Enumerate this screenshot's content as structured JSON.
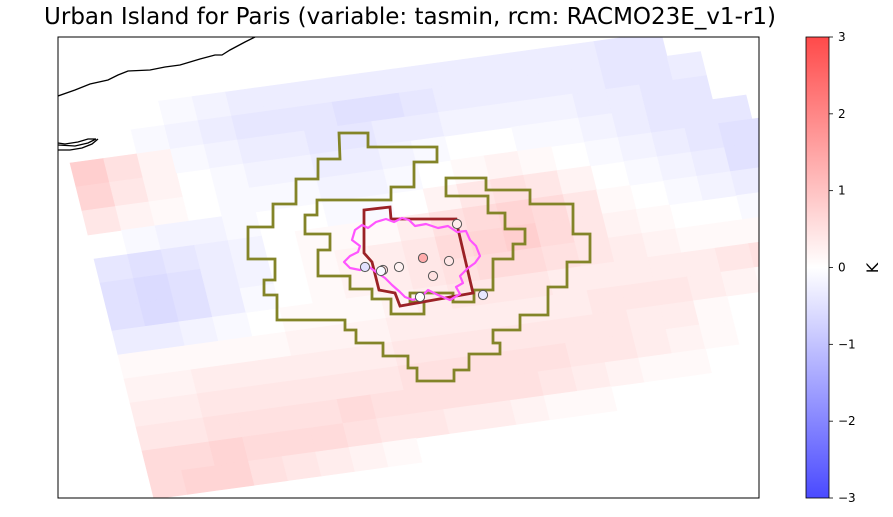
{
  "chart_data": {
    "type": "heatmap",
    "title": "Urban Island for Paris (variable: tasmin, rcm: RACMO23E_v1-r1)",
    "colorbar": {
      "label": "K",
      "range": [
        -3,
        3
      ],
      "ticks": [
        -3,
        -2,
        -1,
        0,
        1,
        2,
        3
      ],
      "tick_labels": [
        "−3",
        "−2",
        "−1",
        "0",
        "1",
        "2",
        "3"
      ],
      "colormap": [
        "#4a4aff",
        "#ffffff",
        "#ff4a4a"
      ]
    },
    "overlay_colors": {
      "urban_boundary": "#ff55ff",
      "urban_grid": "#9b2226",
      "rural_ring": "#838428",
      "coastline": "#000000"
    },
    "grid_anomaly_K": [
      [
        0.0,
        0.0,
        0.0,
        -0.1,
        -0.2,
        -0.3,
        -0.3,
        -0.3,
        -0.3,
        -0.3,
        -0.3,
        -0.3,
        -0.3,
        -0.3,
        -0.3,
        -0.3,
        -0.4,
        -0.4,
        0.0,
        0.0,
        0.0,
        0.0
      ],
      [
        0.0,
        0.0,
        -0.1,
        -0.2,
        -0.3,
        -0.4,
        -0.4,
        -0.4,
        -0.5,
        -0.5,
        -0.4,
        -0.3,
        -0.3,
        -0.3,
        -0.3,
        -0.3,
        -0.4,
        -0.4,
        -0.3,
        0.0,
        0.0,
        0.0
      ],
      [
        0.8,
        0.5,
        0.2,
        -0.1,
        -0.2,
        -0.3,
        -0.3,
        -0.4,
        -0.4,
        -0.3,
        -0.3,
        -0.2,
        -0.2,
        -0.2,
        -0.2,
        -0.3,
        -0.3,
        -0.4,
        -0.4,
        0.0,
        0.0,
        0.0
      ],
      [
        0.7,
        0.4,
        0.2,
        0.0,
        -0.1,
        -0.2,
        -0.2,
        -0.3,
        -0.3,
        -0.2,
        -0.1,
        0.0,
        0.0,
        -0.1,
        -0.1,
        -0.2,
        -0.3,
        -0.4,
        -0.4,
        -0.4,
        0.0,
        0.0
      ],
      [
        0.4,
        0.2,
        0.1,
        0.0,
        -0.1,
        -0.1,
        -0.1,
        -0.2,
        -0.2,
        -0.1,
        0.0,
        0.1,
        0.2,
        0.1,
        0.0,
        -0.1,
        -0.2,
        -0.3,
        -0.4,
        -0.5,
        -0.5,
        0.0
      ],
      [
        0.0,
        -0.1,
        -0.2,
        -0.2,
        -0.1,
        0.0,
        0.0,
        -0.1,
        -0.1,
        0.0,
        0.2,
        0.4,
        0.5,
        0.4,
        0.2,
        0.0,
        -0.1,
        -0.2,
        -0.3,
        -0.5,
        -0.6,
        -0.6
      ],
      [
        -0.4,
        -0.5,
        -0.4,
        -0.3,
        -0.2,
        0.0,
        0.1,
        0.1,
        0.1,
        0.3,
        0.5,
        0.6,
        0.7,
        0.6,
        0.4,
        0.1,
        0.0,
        -0.1,
        -0.2,
        -0.3,
        -0.4,
        -0.5
      ],
      [
        -0.5,
        -0.6,
        -0.5,
        -0.3,
        -0.2,
        0.0,
        0.1,
        0.2,
        0.3,
        0.4,
        0.6,
        0.7,
        0.8,
        0.6,
        0.4,
        0.2,
        0.1,
        0.0,
        0.0,
        -0.1,
        -0.2,
        -0.2
      ],
      [
        -0.5,
        -0.6,
        -0.5,
        -0.3,
        -0.1,
        0.0,
        0.1,
        0.2,
        0.3,
        0.4,
        0.5,
        0.6,
        0.6,
        0.5,
        0.4,
        0.3,
        0.2,
        0.1,
        0.1,
        0.1,
        0.2,
        0.3
      ],
      [
        -0.3,
        -0.3,
        -0.2,
        -0.1,
        0.0,
        0.1,
        0.1,
        0.1,
        0.2,
        0.3,
        0.4,
        0.4,
        0.4,
        0.3,
        0.3,
        0.3,
        0.3,
        0.3,
        0.4,
        0.5,
        0.5,
        0.5
      ],
      [
        0.1,
        0.1,
        0.1,
        0.1,
        0.1,
        0.2,
        0.2,
        0.2,
        0.3,
        0.3,
        0.3,
        0.3,
        0.3,
        0.3,
        0.4,
        0.4,
        0.4,
        0.3,
        0.2,
        0.1,
        0.0,
        -0.1
      ],
      [
        0.2,
        0.2,
        0.3,
        0.3,
        0.3,
        0.3,
        0.3,
        0.3,
        0.4,
        0.4,
        0.4,
        0.4,
        0.4,
        0.4,
        0.4,
        0.3,
        0.3,
        0.1,
        0.0,
        -0.1,
        -0.2,
        -0.2
      ],
      [
        0.3,
        0.3,
        0.4,
        0.4,
        0.4,
        0.4,
        0.4,
        0.4,
        0.5,
        0.5,
        0.5,
        0.5,
        0.5,
        0.4,
        0.4,
        0.3,
        0.2,
        0.1,
        0.0,
        -0.1,
        -0.1,
        -0.1
      ],
      [
        0.4,
        0.4,
        0.5,
        0.5,
        0.5,
        0.5,
        0.6,
        0.5,
        0.5,
        0.5,
        0.5,
        0.5,
        0.4,
        0.3,
        0.2,
        0.1,
        0.1,
        0.0,
        0.0,
        0.0,
        0.0,
        0.0
      ],
      [
        0.6,
        0.6,
        0.7,
        0.6,
        0.6,
        0.6,
        0.5,
        0.4,
        0.4,
        0.3,
        0.3,
        0.2,
        0.1,
        0.1,
        0.0,
        0.0,
        0.0,
        0.0,
        0.0,
        0.0,
        0.0,
        0.0
      ],
      [
        0.6,
        0.7,
        0.7,
        0.5,
        0.4,
        0.3,
        0.2,
        0.1,
        0.0,
        0.0,
        0.0,
        0.0,
        0.0,
        0.0,
        0.0,
        0.0,
        0.0,
        0.0,
        0.0,
        0.0,
        0.0,
        0.0
      ]
    ],
    "stations": [
      {
        "anomaly": 1.4
      },
      {
        "anomaly": 0.4
      },
      {
        "anomaly": 0.3
      },
      {
        "anomaly": 0.2
      },
      {
        "anomaly": 0.5
      },
      {
        "anomaly": 0.6
      },
      {
        "anomaly": -0.5
      },
      {
        "anomaly": 0.0
      },
      {
        "anomaly": -0.4
      },
      {
        "anomaly": -0.1
      }
    ]
  }
}
